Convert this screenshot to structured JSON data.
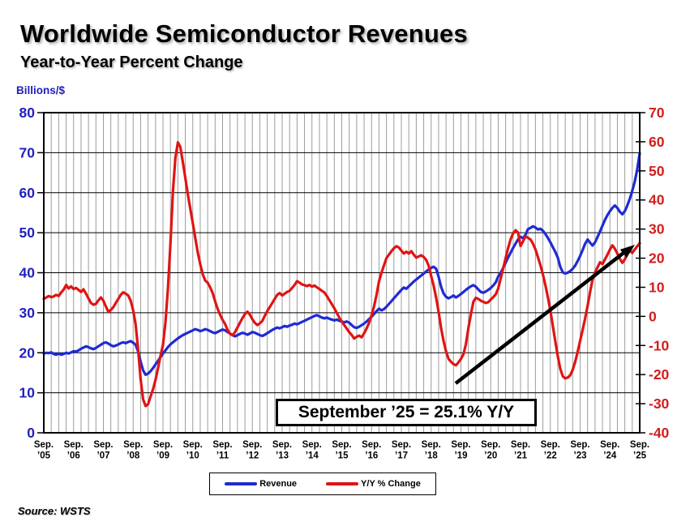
{
  "header": {
    "title": "Worldwide Semiconductor Revenues",
    "subtitle": "Year-to-Year Percent Change"
  },
  "footer": {
    "source": "Source: WSTS"
  },
  "chart_data": {
    "type": "line",
    "title": "Worldwide Semiconductor Revenues",
    "subtitle": "Year-to-Year Percent Change",
    "x_start": "Sep 2005",
    "x_end": "Sep 2025",
    "x_step": "monthly",
    "grid": {
      "vertical": "quarterly",
      "horizontal": "every 10 billions (left axis)"
    },
    "legend_position": "bottom-center",
    "annotation": {
      "text": "September ’25 = 25.1% Y/Y"
    },
    "left_axis": {
      "label": "Billions/$",
      "min": 0,
      "max": 80,
      "ticks": [
        80,
        70,
        60,
        50,
        40,
        30,
        20,
        10,
        0
      ],
      "color": "#2121bd"
    },
    "right_axis": {
      "min": -40,
      "max": 70,
      "ticks": [
        70,
        60,
        50,
        40,
        30,
        20,
        10,
        0,
        -10,
        -20,
        -30,
        -40
      ],
      "color": "#d21d1d"
    },
    "x_axis": {
      "month": "Sep.",
      "years": [
        "’05",
        "’06",
        "’07",
        "’08",
        "’09",
        "’10",
        "’11",
        "’12",
        "’13",
        "’14",
        "’15",
        "’16",
        "’17",
        "’18",
        "’19",
        "’20",
        "’21",
        "’22",
        "’23",
        "’24",
        "’25"
      ]
    },
    "series": [
      {
        "name": "Revenue",
        "axis": "left",
        "color": "#1f2ad4",
        "values": [
          19.8,
          20.0,
          19.9,
          20.1,
          19.7,
          19.5,
          19.8,
          19.5,
          19.7,
          20.0,
          19.8,
          20.1,
          20.4,
          20.3,
          20.6,
          21.0,
          21.3,
          21.6,
          21.4,
          21.1,
          20.9,
          21.2,
          21.6,
          22.0,
          22.4,
          22.6,
          22.3,
          21.9,
          21.6,
          21.8,
          22.1,
          22.4,
          22.6,
          22.4,
          22.7,
          22.9,
          22.5,
          22.0,
          20.3,
          17.8,
          15.6,
          14.5,
          14.8,
          15.4,
          16.2,
          17.1,
          18.0,
          18.9,
          19.8,
          20.6,
          21.4,
          22.1,
          22.6,
          23.1,
          23.6,
          24.0,
          24.4,
          24.7,
          25.0,
          25.3,
          25.6,
          25.9,
          25.7,
          25.4,
          25.6,
          25.9,
          25.7,
          25.4,
          25.1,
          24.9,
          25.2,
          25.5,
          25.8,
          25.6,
          25.2,
          24.8,
          24.4,
          24.1,
          24.4,
          24.7,
          25.0,
          24.8,
          24.5,
          24.8,
          25.2,
          25.0,
          24.7,
          24.4,
          24.2,
          24.5,
          24.9,
          25.3,
          25.7,
          26.0,
          26.3,
          26.1,
          26.4,
          26.7,
          26.5,
          26.8,
          27.0,
          27.3,
          27.1,
          27.4,
          27.7,
          28.0,
          28.3,
          28.6,
          28.9,
          29.2,
          29.4,
          29.1,
          28.8,
          28.6,
          28.8,
          28.5,
          28.3,
          28.1,
          28.3,
          28.0,
          27.8,
          27.6,
          27.8,
          27.5,
          26.9,
          26.4,
          26.2,
          26.5,
          26.9,
          27.3,
          27.8,
          28.4,
          29.0,
          29.7,
          30.4,
          31.0,
          30.6,
          30.9,
          31.5,
          32.2,
          32.9,
          33.6,
          34.3,
          35.0,
          35.7,
          36.3,
          36.0,
          36.6,
          37.2,
          37.8,
          38.3,
          38.8,
          39.3,
          39.8,
          40.3,
          40.8,
          41.2,
          41.5,
          41.0,
          39.0,
          36.5,
          34.8,
          34.0,
          33.6,
          33.9,
          34.3,
          33.8,
          34.2,
          34.7,
          35.2,
          35.7,
          36.2,
          36.6,
          36.9,
          36.5,
          35.8,
          35.2,
          35.0,
          35.3,
          35.7,
          36.2,
          36.8,
          37.6,
          39.0,
          40.0,
          41.2,
          42.5,
          43.8,
          45.0,
          46.2,
          47.3,
          48.3,
          49.0,
          48.6,
          49.5,
          50.9,
          51.2,
          51.6,
          51.3,
          50.8,
          51.0,
          50.5,
          49.7,
          48.7,
          47.6,
          46.4,
          45.2,
          43.8,
          41.5,
          40.1,
          39.8,
          40.0,
          40.4,
          41.0,
          41.8,
          42.9,
          44.2,
          45.7,
          47.2,
          48.3,
          47.5,
          46.8,
          47.6,
          48.9,
          50.3,
          51.8,
          53.2,
          54.4,
          55.4,
          56.2,
          56.8,
          56.2,
          55.2,
          54.6,
          55.4,
          56.8,
          58.5,
          60.5,
          62.8,
          65.8,
          69.9
        ]
      },
      {
        "name": "Y/Y % Change",
        "axis": "right",
        "color": "#e01414",
        "values": [
          6.0,
          6.5,
          7.0,
          6.6,
          6.9,
          7.4,
          7.0,
          8.2,
          9.2,
          10.8,
          9.6,
          10.3,
          9.4,
          9.8,
          9.1,
          8.4,
          9.3,
          7.8,
          6.2,
          4.6,
          4.0,
          4.3,
          5.5,
          6.5,
          5.4,
          3.4,
          1.6,
          2.2,
          3.2,
          4.6,
          6.0,
          7.4,
          8.3,
          7.8,
          7.2,
          5.4,
          2.0,
          -2.8,
          -11.5,
          -21.5,
          -28.5,
          -30.8,
          -30.2,
          -27.5,
          -25.0,
          -21.8,
          -17.8,
          -13.6,
          -9.8,
          -2.0,
          9.5,
          25.0,
          43.0,
          54.5,
          59.8,
          58.2,
          53.0,
          47.5,
          42.0,
          37.0,
          32.0,
          27.0,
          22.0,
          18.0,
          14.5,
          12.3,
          11.6,
          10.0,
          8.0,
          5.2,
          2.6,
          0.6,
          -1.2,
          -2.6,
          -4.6,
          -6.0,
          -6.5,
          -5.4,
          -3.8,
          -2.2,
          -0.6,
          0.8,
          1.6,
          0.6,
          -1.0,
          -2.2,
          -3.0,
          -2.4,
          -1.6,
          0.2,
          1.8,
          3.2,
          4.6,
          6.0,
          7.4,
          8.0,
          7.2,
          7.8,
          8.4,
          8.8,
          9.8,
          10.8,
          12.1,
          11.6,
          11.0,
          10.7,
          10.4,
          10.8,
          10.2,
          10.6,
          10.0,
          9.4,
          8.8,
          8.2,
          7.0,
          5.6,
          4.2,
          2.8,
          1.2,
          -0.4,
          -1.8,
          -3.0,
          -4.2,
          -5.4,
          -6.4,
          -7.6,
          -7.0,
          -6.6,
          -7.2,
          -5.8,
          -4.2,
          -2.2,
          0.4,
          3.4,
          7.4,
          12.0,
          15.0,
          17.6,
          20.0,
          21.2,
          22.4,
          23.4,
          24.1,
          23.7,
          22.6,
          21.6,
          22.2,
          21.6,
          22.4,
          21.2,
          20.2,
          20.6,
          21.0,
          20.4,
          19.4,
          17.4,
          13.8,
          10.6,
          6.4,
          1.6,
          -4.0,
          -8.5,
          -12.0,
          -14.6,
          -15.6,
          -16.4,
          -16.8,
          -15.8,
          -14.6,
          -13.0,
          -9.6,
          -4.0,
          0.8,
          5.0,
          6.4,
          6.0,
          5.4,
          5.0,
          4.6,
          4.9,
          5.8,
          6.6,
          7.6,
          9.5,
          13.0,
          16.5,
          20.0,
          23.5,
          26.5,
          28.5,
          29.6,
          28.8,
          24.2,
          25.8,
          27.5,
          27.0,
          26.4,
          25.0,
          23.0,
          20.4,
          17.6,
          14.4,
          10.8,
          6.6,
          2.0,
          -3.2,
          -8.6,
          -13.6,
          -18.0,
          -20.6,
          -21.3,
          -21.0,
          -20.2,
          -18.4,
          -15.6,
          -12.2,
          -8.4,
          -4.6,
          -0.8,
          3.6,
          8.4,
          12.6,
          15.2,
          16.8,
          18.6,
          18.0,
          19.6,
          21.2,
          23.0,
          24.4,
          23.2,
          21.6,
          19.8,
          18.4,
          19.6,
          21.4,
          22.6,
          21.8,
          23.0,
          24.1,
          25.1
        ]
      }
    ]
  }
}
